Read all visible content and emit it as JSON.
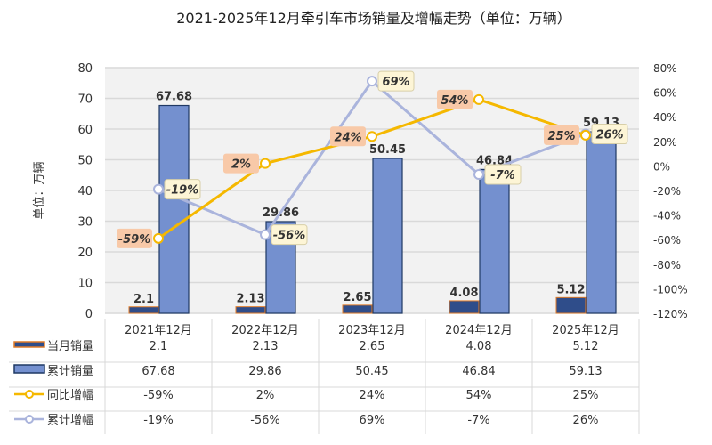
{
  "chart_data": {
    "type": "bar",
    "title": "2021-2025年12月牵引车市场销量及增幅走势（单位：万辆）",
    "ylabel": "单位：万辆",
    "ylim": [
      0,
      80
    ],
    "yticks": [
      "0",
      "10",
      "20",
      "30",
      "40",
      "50",
      "60",
      "70",
      "80"
    ],
    "y2lim": [
      -120,
      80
    ],
    "y2ticks": [
      "-120%",
      "-100%",
      "-80%",
      "-60%",
      "-40%",
      "-20%",
      "0%",
      "20%",
      "40%",
      "60%",
      "80%"
    ],
    "grid": true,
    "legend": "bottom data table",
    "categories": [
      "2021年12月",
      "2022年12月",
      "2023年12月",
      "2024年12月",
      "2025年12月"
    ],
    "series": [
      {
        "name": "当月销量",
        "kind": "bar",
        "axis": "left",
        "values": [
          2.1,
          2.13,
          2.65,
          4.08,
          5.12
        ],
        "labels": [
          "2.1",
          "2.13",
          "2.65",
          "4.08",
          "5.12"
        ]
      },
      {
        "name": "累计销量",
        "kind": "bar",
        "axis": "left",
        "values": [
          67.68,
          29.86,
          50.45,
          46.84,
          59.13
        ],
        "labels": [
          "67.68",
          "29.86",
          "50.45",
          "46.84",
          "59.13"
        ]
      },
      {
        "name": "同比增幅",
        "kind": "line",
        "axis": "right",
        "values": [
          -59,
          2,
          24,
          54,
          25
        ],
        "labels": [
          "-59%",
          "2%",
          "24%",
          "54%",
          "25%"
        ]
      },
      {
        "name": "累计增幅",
        "kind": "line",
        "axis": "right",
        "values": [
          -19,
          -56,
          69,
          -7,
          26
        ],
        "labels": [
          "-19%",
          "-56%",
          "69%",
          "-7%",
          "26%"
        ]
      }
    ],
    "colors": {
      "monthly": "#2f4d8a",
      "monthly_border": "#e07b28",
      "cumulative": "#7490cf",
      "cumulative_border": "#1f3864",
      "yoy": "#f5b800",
      "cum_growth": "#aab4dc",
      "yoy_label_bg": "#f8c9a8",
      "cum_label_bg": "#fdf5d6",
      "plot_bg": "#f2f2f2",
      "grid": "#d9d9d9"
    }
  }
}
